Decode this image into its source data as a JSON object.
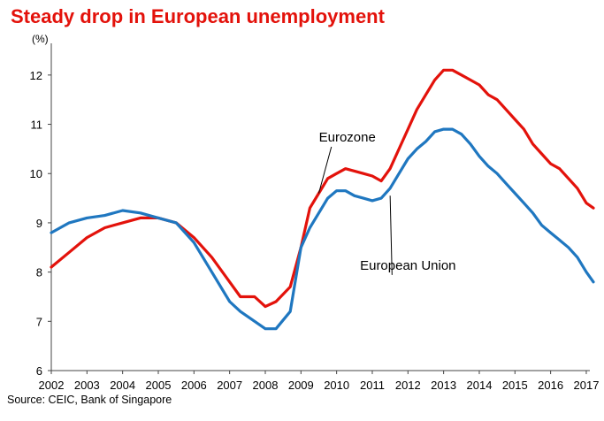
{
  "chart_data": {
    "type": "line",
    "title": "Steady drop in European unemployment",
    "ylabel": "(%)",
    "source": "Source: CEIC, Bank of Singapore",
    "xlim": [
      2002,
      2017.3
    ],
    "ylim": [
      6,
      12.5
    ],
    "x_ticks": [
      "2002",
      "2003",
      "2004",
      "2005",
      "2006",
      "2007",
      "2008",
      "2009",
      "2010",
      "2011",
      "2012",
      "2013",
      "2014",
      "2015",
      "2016",
      "2017"
    ],
    "y_ticks": [
      "6",
      "7",
      "8",
      "9",
      "10",
      "11",
      "12"
    ],
    "grid": false,
    "legend": "inline annotations",
    "series": [
      {
        "name": "Eurozone",
        "color": "#e3120b",
        "points": [
          [
            2002,
            8.1
          ],
          [
            2002.5,
            8.4
          ],
          [
            2003,
            8.7
          ],
          [
            2003.5,
            8.9
          ],
          [
            2004,
            9.0
          ],
          [
            2004.5,
            9.1
          ],
          [
            2005,
            9.1
          ],
          [
            2005.5,
            9.0
          ],
          [
            2006,
            8.7
          ],
          [
            2006.5,
            8.3
          ],
          [
            2007,
            7.8
          ],
          [
            2007.3,
            7.5
          ],
          [
            2007.7,
            7.5
          ],
          [
            2008,
            7.3
          ],
          [
            2008.3,
            7.4
          ],
          [
            2008.7,
            7.7
          ],
          [
            2009,
            8.5
          ],
          [
            2009.25,
            9.3
          ],
          [
            2009.5,
            9.6
          ],
          [
            2009.75,
            9.9
          ],
          [
            2010,
            10.0
          ],
          [
            2010.25,
            10.1
          ],
          [
            2010.5,
            10.05
          ],
          [
            2010.75,
            10.0
          ],
          [
            2011,
            9.95
          ],
          [
            2011.25,
            9.85
          ],
          [
            2011.5,
            10.1
          ],
          [
            2011.75,
            10.5
          ],
          [
            2012,
            10.9
          ],
          [
            2012.25,
            11.3
          ],
          [
            2012.5,
            11.6
          ],
          [
            2012.75,
            11.9
          ],
          [
            2013,
            12.1
          ],
          [
            2013.25,
            12.1
          ],
          [
            2013.5,
            12.0
          ],
          [
            2013.75,
            11.9
          ],
          [
            2014,
            11.8
          ],
          [
            2014.25,
            11.6
          ],
          [
            2014.5,
            11.5
          ],
          [
            2014.75,
            11.3
          ],
          [
            2015,
            11.1
          ],
          [
            2015.25,
            10.9
          ],
          [
            2015.5,
            10.6
          ],
          [
            2015.75,
            10.4
          ],
          [
            2016,
            10.2
          ],
          [
            2016.25,
            10.1
          ],
          [
            2016.5,
            9.9
          ],
          [
            2016.75,
            9.7
          ],
          [
            2017,
            9.4
          ],
          [
            2017.2,
            9.3
          ]
        ]
      },
      {
        "name": "European Union",
        "color": "#1f77c0",
        "points": [
          [
            2002,
            8.8
          ],
          [
            2002.5,
            9.0
          ],
          [
            2003,
            9.1
          ],
          [
            2003.5,
            9.15
          ],
          [
            2004,
            9.25
          ],
          [
            2004.5,
            9.2
          ],
          [
            2005,
            9.1
          ],
          [
            2005.5,
            9.0
          ],
          [
            2006,
            8.6
          ],
          [
            2006.5,
            8.0
          ],
          [
            2007,
            7.4
          ],
          [
            2007.3,
            7.2
          ],
          [
            2007.7,
            7.0
          ],
          [
            2008,
            6.85
          ],
          [
            2008.3,
            6.85
          ],
          [
            2008.7,
            7.2
          ],
          [
            2009,
            8.5
          ],
          [
            2009.25,
            8.9
          ],
          [
            2009.5,
            9.2
          ],
          [
            2009.75,
            9.5
          ],
          [
            2010,
            9.65
          ],
          [
            2010.25,
            9.65
          ],
          [
            2010.5,
            9.55
          ],
          [
            2010.75,
            9.5
          ],
          [
            2011,
            9.45
          ],
          [
            2011.25,
            9.5
          ],
          [
            2011.5,
            9.7
          ],
          [
            2011.75,
            10.0
          ],
          [
            2012,
            10.3
          ],
          [
            2012.25,
            10.5
          ],
          [
            2012.5,
            10.65
          ],
          [
            2012.75,
            10.85
          ],
          [
            2013,
            10.9
          ],
          [
            2013.25,
            10.9
          ],
          [
            2013.5,
            10.8
          ],
          [
            2013.75,
            10.6
          ],
          [
            2014,
            10.35
          ],
          [
            2014.25,
            10.15
          ],
          [
            2014.5,
            10.0
          ],
          [
            2014.75,
            9.8
          ],
          [
            2015,
            9.6
          ],
          [
            2015.25,
            9.4
          ],
          [
            2015.5,
            9.2
          ],
          [
            2015.75,
            8.95
          ],
          [
            2016,
            8.8
          ],
          [
            2016.25,
            8.65
          ],
          [
            2016.5,
            8.5
          ],
          [
            2016.75,
            8.3
          ],
          [
            2017,
            8.0
          ],
          [
            2017.2,
            7.8
          ]
        ]
      }
    ],
    "annotations": [
      {
        "text": "Eurozone",
        "label_at": [
          2010.3,
          10.65
        ],
        "arrow_to": [
          2009.5,
          9.6
        ],
        "anchor": "middle"
      },
      {
        "text": "European Union",
        "label_at": [
          2012.0,
          8.05
        ],
        "arrow_to": [
          2011.5,
          9.55
        ],
        "anchor": "middle"
      }
    ]
  }
}
